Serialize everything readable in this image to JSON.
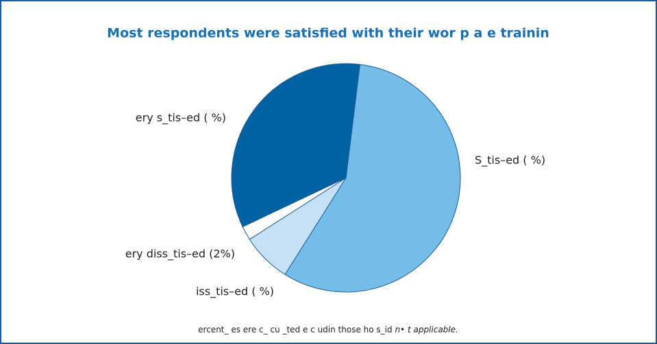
{
  "chart_data": {
    "type": "pie",
    "title": "Most respondents were satisﬁed with their wor p a e trainin",
    "categories": [
      "S_tis–ed (    %)",
      "iss_tis–ed (  %)",
      "ery diss_tis–ed (2%)",
      "ery s_tis–ed (    %)"
    ],
    "values": [
      57,
      7,
      2,
      34
    ],
    "colors": [
      "#74bde8",
      "#c6e0f5",
      "#ffffff",
      "#0062a3"
    ],
    "note": "ercent_ es  ere c_  cu _ted e c udin  those  ho s_id",
    "note_emphasis": "n• t applicable."
  }
}
